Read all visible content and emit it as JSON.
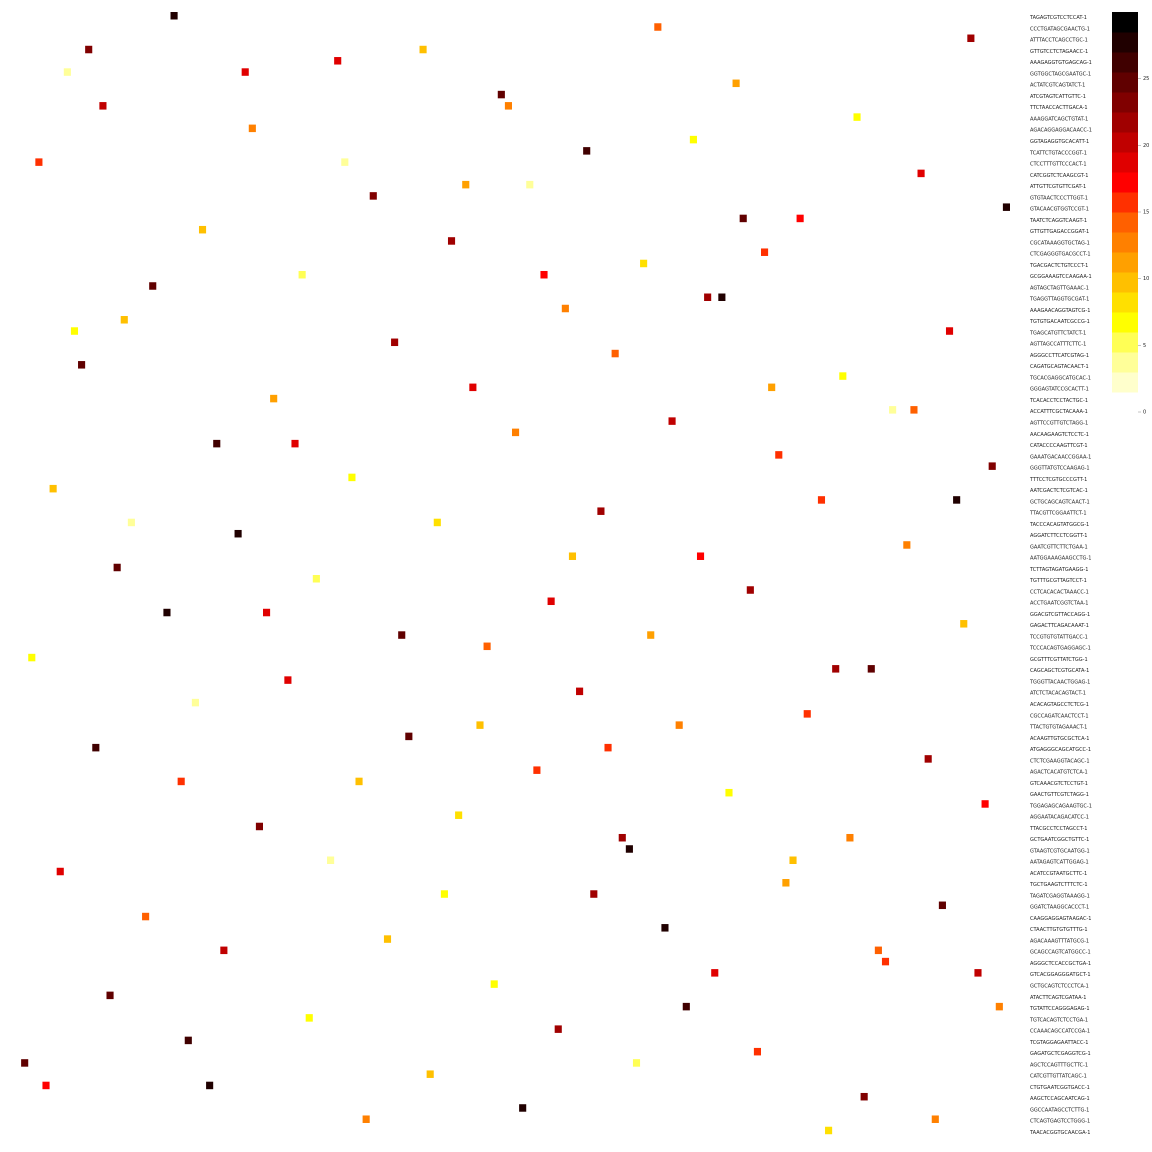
{
  "chart_data": {
    "type": "heatmap",
    "rows": [
      "TAGAGTCGTCCTCCAT-1",
      "CCCTGATAGCGAACTG-1",
      "ATTTACCTCAGCCTGC-1",
      "GTTGTCCTCTAGAACC-1",
      "AAAGAGGTGTGAGCAG-1",
      "GGTGGCTAGCGAATGC-1",
      "ACTATCGTCAGTATCT-1",
      "ATCGTAGTCATTGTTC-1",
      "TTCTAACCACTTGACA-1",
      "AAAGGATCAGCTGTAT-1",
      "AGACAGGAGGACAACC-1",
      "GGTAGAGGTGCACATT-1",
      "TCATTCTGTACCCGGT-1",
      "CTCCTTTGTTCCCACT-1",
      "CATCGGTCTCAAGCGT-1",
      "ATTGTTCGTGTTCGAT-1",
      "GTGTAACTCCCTTGGT-1",
      "GTACAACGTGGTCCGT-1",
      "TAATCTCAGGTCAAGT-1",
      "GTTGTTGAGACCGGAT-1",
      "CGCATAAAGGTGCTAG-1",
      "CTCGAGGGTGACGCCT-1",
      "TGACGACTCTGTCCCT-1",
      "GCGGAAAGTCCAAGAA-1",
      "AGTAGCTAGTTGAAAC-1",
      "TGAGGTTAGGTGCGAT-1",
      "AAAGAACAGGTAGTCG-1",
      "TGTGTGACAATCGCCG-1",
      "TGAGCATGTTCTATCT-1",
      "AGTTAGCCATTTCTTC-1",
      "AGGGCCTTCATCGTAG-1",
      "CAGATGCAGTACAACT-1",
      "TGCACGAGGCATGCAC-1",
      "GGGAGTATCCGCACTT-1",
      "TCACACCTCCTACTGC-1",
      "ACCATTTCGCTACAAA-1",
      "AGTTCCGTTGTCTAGG-1",
      "AACAAGAAGTCTCCTC-1",
      "CATACCCCAAGTTCGT-1",
      "GAAATGACAACCGGAA-1",
      "GGGTTATGTCCAAGAG-1",
      "TTTCCTCGTGCCCGTT-1",
      "AATCGACTCTCGTCAC-1",
      "GCTGCAGCAGTCAACT-1",
      "TTACGTTCGGAATTCT-1",
      "TACCCACAGTATGGCG-1",
      "AGGATCTTCCTCGGTT-1",
      "GAATCGTTCTTCTGAA-1",
      "AATGGAAAGAAGCCTG-1",
      "TCTTAGTAGATGAAGG-1",
      "TGTTTGCGTTAGTCCT-1",
      "CCTCACACACTAAACC-1",
      "ACCTGAATCGGTCTAA-1",
      "GGACGTCGTTACCAGG-1",
      "GAGACTTCAGACAAAT-1",
      "TCCGTGTGTATTGACC-1",
      "TCCCACAGTGAGGAGC-1",
      "GCGTTTCGTTATCTGG-1",
      "CAGCAGCTCGTGCATA-1",
      "TGGGTTACAACTGGAG-1",
      "ATCTCTACACAGTACT-1",
      "ACACAGTAGCCTCTCG-1",
      "CGCCAGATCAACTCCT-1",
      "TTACTGTGTAGAAACT-1",
      "ACAAGTTGTGCGCTCA-1",
      "ATGAGGGCAGCATGCC-1",
      "CTCTCGAAGGTACAGC-1",
      "AGACTCACATGTCTCA-1",
      "GTCAAACGTCTCCTGT-1",
      "GAACTGTTCGTCTAGG-1",
      "TGGAGAGCAGAAGTGC-1",
      "AGGAATACAGACATCC-1",
      "TTACGCCTCCTAGCCT-1",
      "GCTGAATCGGCTGTTC-1",
      "GTAAGTCGTGCAATGG-1",
      "AATAGAGTCATTGGAG-1",
      "ACATCCGTAATGCTTC-1",
      "TGCTGAAGTCTTTCTC-1",
      "TAGATCGAGGTAAAGG-1",
      "GGATCTAAGGCACCCT-1",
      "CAAGGAGGAGTAAGAC-1",
      "CTAACTTGTGTGTTTG-1",
      "AGACAAAGTTTATGCG-1",
      "GCAGCCAGTCATGGCC-1",
      "AGGGCTCCACCGCTGA-1",
      "GTCACGGAGGGATGCT-1",
      "GCTGCAGTCTCCCTCA-1",
      "ATACTTCAGTCGATAA-1",
      "TGTATTCCAGGGAGAG-1",
      "TGTCACAGTCTCCTGA-1",
      "CCAAACAGCCATCCGA-1",
      "TCGTAGGAGAATTACC-1",
      "GAGATGCTCGAGGTCG-1",
      "AGCTCCAGTTTGCTTC-1",
      "CATCGTTGTTATCAGC-1",
      "CTGTGAATCGGTGACC-1",
      "AAGCTCCAGCAATCAG-1",
      "GGCCAATAGCCTCTTG-1",
      "CTCAGTGAGTCCTGGG-1",
      "TAACACGGTGCAACGA-1"
    ],
    "x": [
      22,
      57,
      90,
      134,
      7,
      45,
      68,
      101,
      118,
      12,
      33,
      80,
      95,
      127,
      3,
      50,
      72,
      110,
      139,
      26,
      61,
      88,
      105,
      19,
      40,
      77,
      99,
      131,
      15,
      53,
      84,
      116,
      9,
      36,
      64,
      92,
      123,
      28,
      70,
      107,
      137,
      5,
      47,
      82,
      113,
      31,
      59,
      96,
      125,
      14,
      42,
      75,
      103,
      133,
      21,
      66,
      89,
      120,
      2,
      38,
      79,
      111,
      25,
      55,
      93,
      128,
      11,
      48,
      73,
      100,
      136,
      34,
      62,
      86,
      117,
      6,
      44,
      81,
      108,
      130,
      18,
      52,
      91,
      122,
      29,
      67,
      98,
      138,
      13,
      41,
      76,
      104,
      24,
      58,
      87,
      119,
      4,
      49,
      71,
      114,
      32,
      63,
      97,
      126,
      16,
      54,
      83,
      109,
      135,
      27,
      69,
      102,
      8,
      39,
      78,
      115,
      23,
      60,
      94,
      129,
      10,
      46,
      74,
      106,
      132,
      35,
      65,
      85,
      121,
      1
    ],
    "y": [
      0,
      3,
      1,
      2,
      5,
      4,
      7,
      6,
      9,
      8,
      10,
      12,
      11,
      14,
      13,
      16,
      15,
      18,
      17,
      19,
      20,
      22,
      21,
      24,
      23,
      26,
      25,
      28,
      27,
      29,
      30,
      32,
      31,
      34,
      33,
      36,
      35,
      38,
      37,
      39,
      40,
      42,
      41,
      44,
      43,
      46,
      45,
      48,
      47,
      49,
      50,
      52,
      51,
      54,
      53,
      56,
      55,
      58,
      57,
      59,
      60,
      62,
      61,
      64,
      63,
      66,
      65,
      68,
      67,
      69,
      70,
      72,
      71,
      74,
      73,
      76,
      75,
      78,
      77,
      79,
      80,
      82,
      81,
      84,
      83,
      86,
      85,
      88,
      87,
      89,
      90,
      92,
      91,
      94,
      93,
      96,
      95,
      98,
      97,
      99,
      5,
      15,
      25,
      35,
      45,
      55,
      65,
      75,
      85,
      95,
      8,
      18,
      28,
      38,
      48,
      58,
      68,
      78,
      88,
      98,
      3,
      13,
      23,
      33,
      43,
      53,
      63,
      73,
      83,
      93
    ],
    "values": [
      27,
      9,
      14,
      22,
      4,
      18,
      25,
      11,
      6,
      20,
      12,
      26,
      7,
      19,
      15,
      23,
      3,
      17,
      28,
      10,
      21,
      8,
      16,
      24,
      5,
      13,
      27,
      19,
      9,
      22,
      14,
      6,
      25,
      11,
      18,
      20,
      4,
      26,
      12,
      16,
      23,
      10,
      7,
      21,
      15,
      28,
      8,
      17,
      13,
      24,
      5,
      19,
      22,
      9,
      27,
      14,
      11,
      25,
      6,
      18,
      20,
      16,
      3,
      24,
      12,
      21,
      26,
      10,
      15,
      7,
      17,
      23,
      8,
      28,
      13,
      19,
      4,
      22,
      11,
      25,
      14,
      9,
      27,
      16,
      20,
      6,
      18,
      12,
      24,
      7,
      21,
      15,
      26,
      10,
      5,
      23,
      17,
      13,
      28,
      8,
      19,
      11,
      22,
      14,
      3,
      25,
      16,
      9,
      20,
      27,
      12,
      24,
      6,
      18,
      10,
      21,
      15,
      7,
      26,
      13,
      23,
      4,
      17,
      11,
      28,
      19,
      9,
      22,
      14,
      25
    ],
    "colormap": [
      "#ffffff",
      "#ffffcc",
      "#ffff99",
      "#ffff55",
      "#ffff00",
      "#ffe000",
      "#ffc000",
      "#ffa000",
      "#ff8000",
      "#ff6000",
      "#ff3000",
      "#ff0000",
      "#e00000",
      "#c00000",
      "#a00000",
      "#800000",
      "#600000",
      "#400000",
      "#200000",
      "#000000"
    ],
    "clim": [
      0,
      30
    ],
    "cticks": [
      0,
      5,
      10,
      15,
      20,
      25
    ]
  }
}
